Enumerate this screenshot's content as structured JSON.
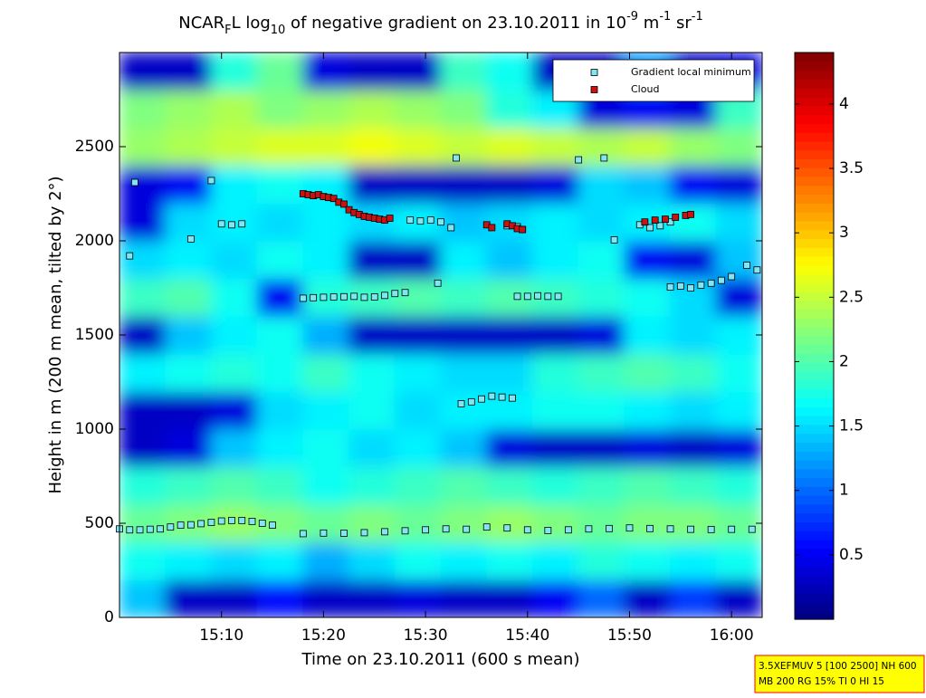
{
  "chart_data": {
    "type": "heatmap-scatter",
    "title": [
      {
        "text": "NCAR",
        "shift": "none"
      },
      {
        "text": "F",
        "shift": "sub"
      },
      {
        "text": "L log",
        "shift": "none"
      },
      {
        "text": "10",
        "shift": "sub"
      },
      {
        "text": " of negative gradient on 23.10.2011 in 10",
        "shift": "none"
      },
      {
        "text": "-9",
        "shift": "super"
      },
      {
        "text": " m",
        "shift": "none"
      },
      {
        "text": "-1",
        "shift": "super"
      },
      {
        "text": " sr",
        "shift": "none"
      },
      {
        "text": "-1",
        "shift": "super"
      }
    ],
    "x_label": "Time on 23.10.2011 (600 s mean)",
    "y_label": "Height in m (200 m mean, tilted by 2°)",
    "xlim": [
      900,
      963
    ],
    "xticks": [
      {
        "value": 910,
        "label": "15:10"
      },
      {
        "value": 920,
        "label": "15:20"
      },
      {
        "value": 930,
        "label": "15:30"
      },
      {
        "value": 940,
        "label": "15:40"
      },
      {
        "value": 950,
        "label": "15:50"
      },
      {
        "value": 960,
        "label": "16:00"
      }
    ],
    "ylim": [
      0,
      3000
    ],
    "yticks": [
      0,
      500,
      1000,
      1500,
      2000,
      2500
    ],
    "colormap": "jet",
    "clim": [
      0,
      4.4
    ],
    "cticks": [
      0.5,
      1,
      1.5,
      2,
      2.5,
      3,
      3.5,
      4
    ],
    "heatmap": {
      "xbins": [
        900,
        904.5,
        909,
        913.5,
        918,
        922.5,
        927,
        931.5,
        936,
        940.5,
        945,
        949.5,
        954,
        958.5,
        963
      ],
      "ybins": [
        0,
        200,
        400,
        600,
        800,
        1000,
        1200,
        1400,
        1600,
        1800,
        2000,
        2200,
        2400,
        2600,
        2800,
        3000
      ],
      "z": [
        [
          1.4,
          0.3,
          0.3,
          0.6,
          0.3,
          0.3,
          0.4,
          0.3,
          0.3,
          0.5,
          1.0,
          0.3,
          0.8,
          0.3
        ],
        [
          1.7,
          1.6,
          1.5,
          1.6,
          1.3,
          1.5,
          1.7,
          1.6,
          1.7,
          1.6,
          1.8,
          1.7,
          1.6,
          1.7
        ],
        [
          2.1,
          2.2,
          2.3,
          2.2,
          2.1,
          2.2,
          2.1,
          2.2,
          2.3,
          2.2,
          2.1,
          2.2,
          2.2,
          2.1
        ],
        [
          1.8,
          1.9,
          2.0,
          1.9,
          1.7,
          1.8,
          1.9,
          2.0,
          1.9,
          1.8,
          1.9,
          2.0,
          1.9,
          1.8
        ],
        [
          0.3,
          0.4,
          1.4,
          1.6,
          1.7,
          1.5,
          1.6,
          1.4,
          0.4,
          0.3,
          0.3,
          0.4,
          0.3,
          0.4
        ],
        [
          0.3,
          0.3,
          0.4,
          1.5,
          1.6,
          1.7,
          1.5,
          1.6,
          1.6,
          1.7,
          1.7,
          1.6,
          1.5,
          1.6
        ],
        [
          1.6,
          1.7,
          1.8,
          1.7,
          1.9,
          1.7,
          1.6,
          1.5,
          1.5,
          1.8,
          1.9,
          2.0,
          1.9,
          1.7
        ],
        [
          0.3,
          1.4,
          1.6,
          1.7,
          1.3,
          0.3,
          0.3,
          0.3,
          0.3,
          0.3,
          0.4,
          1.6,
          1.5,
          1.6
        ],
        [
          1.9,
          2.0,
          1.7,
          0.5,
          1.8,
          1.9,
          2.0,
          1.9,
          2.0,
          1.9,
          1.8,
          1.7,
          1.5,
          0.4
        ],
        [
          1.5,
          1.6,
          1.5,
          1.7,
          1.6,
          0.3,
          0.3,
          1.6,
          1.4,
          1.6,
          1.7,
          0.5,
          0.4,
          1.4
        ],
        [
          0.4,
          1.5,
          1.6,
          1.5,
          1.6,
          1.5,
          1.6,
          1.4,
          1.5,
          1.6,
          1.5,
          1.6,
          1.7,
          1.5
        ],
        [
          0.4,
          0.5,
          1.6,
          1.7,
          1.6,
          0.3,
          0.3,
          0.3,
          0.3,
          0.4,
          1.5,
          1.4,
          0.5,
          0.4
        ],
        [
          2.3,
          2.4,
          2.5,
          2.6,
          2.6,
          2.7,
          2.6,
          2.5,
          2.6,
          2.5,
          2.4,
          2.5,
          2.3,
          2.2
        ],
        [
          2.2,
          2.3,
          2.4,
          2.2,
          2.3,
          2.4,
          2.3,
          2.2,
          1.8,
          1.6,
          0.4,
          0.5,
          0.4,
          1.9
        ],
        [
          0.3,
          0.3,
          1.8,
          2.1,
          0.4,
          0.3,
          0.3,
          1.9,
          1.7,
          0.3,
          0.3,
          1.2,
          0.3,
          0.4
        ]
      ]
    },
    "legend": "northeast",
    "series": [
      {
        "name": "Gradient local minimum",
        "color": "#7fe6f2",
        "x": [
          900,
          901,
          902,
          903,
          904,
          905,
          906,
          907,
          908,
          909,
          910,
          911,
          912,
          913,
          914,
          915,
          918,
          920,
          922,
          924,
          926,
          928,
          930,
          932,
          934,
          936,
          938,
          940,
          942,
          944,
          946,
          948,
          950,
          952,
          954,
          956,
          958,
          960,
          962,
          918,
          919,
          920,
          921,
          922,
          923,
          924,
          925,
          926,
          927,
          928,
          939,
          940,
          941,
          942,
          943,
          954,
          955,
          956,
          957,
          958,
          959,
          960,
          961.5,
          962.5,
          933.5,
          934.5,
          935.5,
          936.5,
          937.5,
          938.5,
          910,
          911,
          912,
          928.5,
          929.5,
          930.5,
          931.5,
          932.5,
          938,
          939,
          939.5,
          948.5,
          951,
          952,
          953,
          954,
          901.5,
          901,
          907,
          909,
          933,
          945,
          947.5,
          931.2
        ],
        "y": [
          470,
          465,
          465,
          468,
          470,
          480,
          490,
          492,
          498,
          505,
          512,
          515,
          515,
          510,
          500,
          490,
          445,
          448,
          447,
          450,
          455,
          460,
          465,
          470,
          468,
          480,
          475,
          465,
          462,
          465,
          470,
          472,
          475,
          472,
          470,
          468,
          467,
          468,
          468,
          1695,
          1698,
          1700,
          1702,
          1703,
          1705,
          1700,
          1702,
          1710,
          1720,
          1725,
          1705,
          1705,
          1708,
          1705,
          1705,
          1755,
          1760,
          1750,
          1765,
          1775,
          1790,
          1810,
          1870,
          1845,
          1135,
          1145,
          1160,
          1175,
          1170,
          1165,
          2090,
          2085,
          2090,
          2110,
          2105,
          2110,
          2100,
          2070,
          2080,
          2075,
          2060,
          2005,
          2085,
          2070,
          2080,
          2100,
          2310,
          1920,
          2010,
          2320,
          2440,
          2430,
          2440,
          1775
        ]
      },
      {
        "name": "Cloud",
        "color": "#cc1111",
        "x": [
          918,
          918.5,
          919,
          919.5,
          920,
          920.5,
          921,
          921.5,
          922,
          922.5,
          923,
          923.5,
          924,
          924.5,
          925,
          925.5,
          926,
          926.5,
          936,
          936.5,
          938,
          938.5,
          939,
          939.5,
          951.5,
          952.5,
          953.5,
          954.5,
          955.5,
          956
        ],
        "y": [
          2250,
          2245,
          2240,
          2245,
          2235,
          2230,
          2225,
          2205,
          2195,
          2165,
          2150,
          2140,
          2130,
          2125,
          2120,
          2115,
          2110,
          2120,
          2085,
          2070,
          2090,
          2080,
          2065,
          2060,
          2100,
          2110,
          2115,
          2125,
          2135,
          2140
        ]
      }
    ],
    "annotations": [
      "3.5XEFMUV 5 [100 2500] NH 600",
      "MB 200 RG 15% TI 0 HI 15"
    ]
  }
}
